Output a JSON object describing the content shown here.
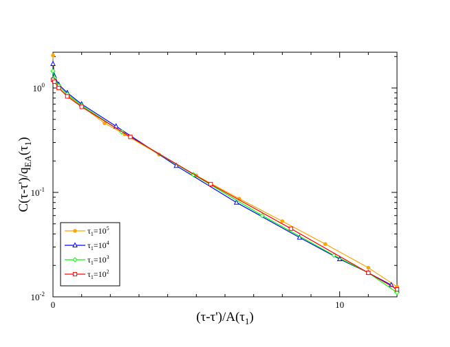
{
  "chart_data": {
    "type": "line",
    "xlabel_parts": {
      "main": "(τ-τ')/A(τ",
      "sub": "1",
      "close": ")"
    },
    "ylabel_parts": {
      "main": "C(τ-τ')/q",
      "sub1": "EA",
      "mid": "(τ",
      "sub2": "1",
      "close": ")"
    },
    "xlim": [
      0,
      12
    ],
    "ylim": [
      0.01,
      2.2
    ],
    "yscale": "log",
    "grid": false,
    "legend_placement": "bottom-left",
    "x_ticks": [
      {
        "value": 0,
        "label": "0"
      },
      {
        "value": 10,
        "label": "10"
      }
    ],
    "y_ticks": [
      {
        "value": 1,
        "base": "10",
        "exp": "0"
      },
      {
        "value": 0.1,
        "base": "10",
        "exp": "-1"
      },
      {
        "value": 0.01,
        "base": "10",
        "exp": "-2"
      }
    ],
    "series": [
      {
        "legend_base": "τ",
        "legend_sub": "1",
        "legend_eq": "=10",
        "legend_exp": "5",
        "color": "#ffa500",
        "marker": "circle",
        "x": [
          0,
          0.05,
          0.2,
          0.5,
          1,
          1.8,
          2.5,
          3.7,
          5,
          6.5,
          8,
          9.5,
          11,
          12
        ],
        "y": [
          2.05,
          1.2,
          1.0,
          0.85,
          0.67,
          0.46,
          0.36,
          0.23,
          0.145,
          0.087,
          0.053,
          0.032,
          0.019,
          0.0125
        ]
      },
      {
        "legend_base": "τ",
        "legend_sub": "1",
        "legend_eq": "=10",
        "legend_exp": "4",
        "color": "#0000ff",
        "marker": "triangle",
        "x": [
          0,
          0.05,
          0.2,
          0.5,
          1,
          2.2,
          4.3,
          6.4,
          8.6,
          10,
          11,
          11.8,
          12
        ],
        "y": [
          1.7,
          1.3,
          1.08,
          0.9,
          0.7,
          0.43,
          0.18,
          0.08,
          0.037,
          0.023,
          0.017,
          0.013,
          0.0115
        ]
      },
      {
        "legend_base": "τ",
        "legend_sub": "1",
        "legend_eq": "=10",
        "legend_exp": "3",
        "color": "#00ff00",
        "marker": "diamond",
        "x": [
          0,
          0.05,
          0.2,
          0.5,
          1,
          2.4,
          4.9,
          7.3,
          9.8,
          11,
          12
        ],
        "y": [
          1.45,
          1.25,
          1.05,
          0.87,
          0.68,
          0.38,
          0.148,
          0.06,
          0.025,
          0.017,
          0.011
        ]
      },
      {
        "legend_base": "τ",
        "legend_sub": "1",
        "legend_eq": "=10",
        "legend_exp": "2",
        "color": "#ff0000",
        "marker": "square",
        "x": [
          0,
          0.05,
          0.2,
          0.5,
          1,
          2.7,
          5.5,
          8.3,
          11,
          12
        ],
        "y": [
          1.2,
          1.15,
          1.0,
          0.83,
          0.66,
          0.34,
          0.12,
          0.045,
          0.017,
          0.0118
        ]
      }
    ]
  }
}
